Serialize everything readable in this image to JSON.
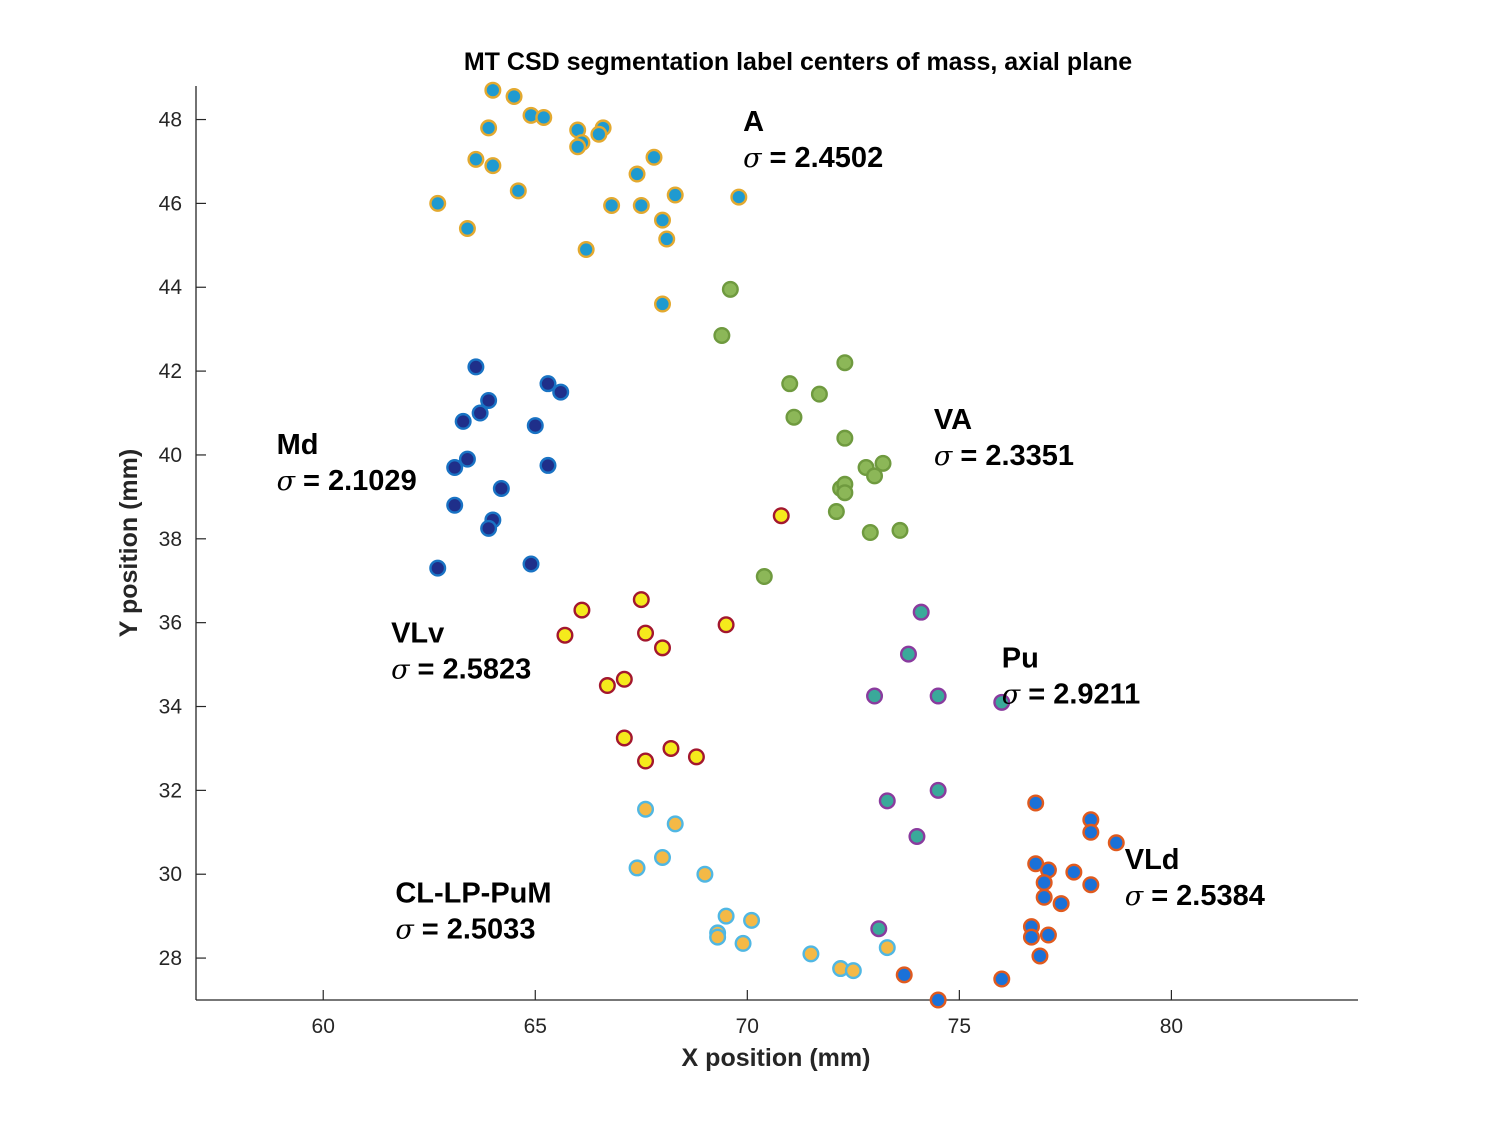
{
  "chart_data": {
    "type": "scatter",
    "title": "MT CSD segmentation label centers of mass, axial plane",
    "xlabel": "X position (mm)",
    "ylabel": "Y position (mm)",
    "xlim": [
      57,
      84.4
    ],
    "ylim": [
      27,
      48.8
    ],
    "xticks": [
      60,
      65,
      70,
      75,
      80
    ],
    "yticks": [
      28,
      30,
      32,
      34,
      36,
      38,
      40,
      42,
      44,
      46,
      48
    ],
    "grid": false,
    "series": [
      {
        "name": "A",
        "sigma_symbol": "σ",
        "sigma_text": "= 2.4502",
        "face_color": "#1f9ad0",
        "edge_color": "#e3a92f",
        "points": [
          [
            64.0,
            48.7
          ],
          [
            64.5,
            48.55
          ],
          [
            64.9,
            48.1
          ],
          [
            65.2,
            48.05
          ],
          [
            63.9,
            47.8
          ],
          [
            66.0,
            47.75
          ],
          [
            66.6,
            47.8
          ],
          [
            66.5,
            47.65
          ],
          [
            66.1,
            47.45
          ],
          [
            66.0,
            47.35
          ],
          [
            63.6,
            47.05
          ],
          [
            64.0,
            46.9
          ],
          [
            67.8,
            47.1
          ],
          [
            67.4,
            46.7
          ],
          [
            64.6,
            46.3
          ],
          [
            68.3,
            46.2
          ],
          [
            69.8,
            46.15
          ],
          [
            62.7,
            46.0
          ],
          [
            66.8,
            45.95
          ],
          [
            67.5,
            45.95
          ],
          [
            68.0,
            45.6
          ],
          [
            63.4,
            45.4
          ],
          [
            68.1,
            45.15
          ],
          [
            66.2,
            44.9
          ],
          [
            68.0,
            43.6
          ]
        ],
        "label_anchor": [
          69.9,
          47.2
        ]
      },
      {
        "name": "VA",
        "sigma_symbol": "σ",
        "sigma_text": "= 2.3351",
        "face_color": "#8cb758",
        "edge_color": "#6f9a3f",
        "points": [
          [
            69.6,
            43.95
          ],
          [
            69.4,
            42.85
          ],
          [
            72.3,
            42.2
          ],
          [
            71.0,
            41.7
          ],
          [
            71.7,
            41.45
          ],
          [
            71.1,
            40.9
          ],
          [
            72.3,
            40.4
          ],
          [
            72.8,
            39.7
          ],
          [
            73.2,
            39.8
          ],
          [
            73.0,
            39.5
          ],
          [
            72.2,
            39.2
          ],
          [
            72.3,
            39.3
          ],
          [
            72.3,
            39.1
          ],
          [
            72.1,
            38.65
          ],
          [
            72.9,
            38.15
          ],
          [
            73.6,
            38.2
          ],
          [
            70.4,
            37.1
          ]
        ],
        "label_anchor": [
          74.4,
          40.1
        ]
      },
      {
        "name": "Md",
        "sigma_symbol": "σ",
        "sigma_text": "= 2.1029",
        "face_color": "#1f2f8a",
        "edge_color": "#1973c4",
        "points": [
          [
            63.6,
            42.1
          ],
          [
            65.3,
            41.7
          ],
          [
            65.6,
            41.5
          ],
          [
            63.9,
            41.3
          ],
          [
            63.7,
            41.0
          ],
          [
            63.3,
            40.8
          ],
          [
            65.0,
            40.7
          ],
          [
            63.4,
            39.9
          ],
          [
            63.1,
            39.7
          ],
          [
            65.3,
            39.75
          ],
          [
            64.2,
            39.2
          ],
          [
            63.1,
            38.8
          ],
          [
            64.0,
            38.45
          ],
          [
            63.9,
            38.25
          ],
          [
            62.7,
            37.3
          ],
          [
            64.9,
            37.4
          ]
        ],
        "label_anchor": [
          58.9,
          39.5
        ]
      },
      {
        "name": "VLv",
        "sigma_symbol": "σ",
        "sigma_text": "= 2.5823",
        "face_color": "#f5ea1c",
        "edge_color": "#a3172e",
        "points": [
          [
            70.8,
            38.55
          ],
          [
            67.5,
            36.55
          ],
          [
            66.1,
            36.3
          ],
          [
            69.5,
            35.95
          ],
          [
            65.7,
            35.7
          ],
          [
            67.6,
            35.75
          ],
          [
            68.0,
            35.4
          ],
          [
            67.1,
            34.65
          ],
          [
            66.7,
            34.5
          ],
          [
            67.1,
            33.25
          ],
          [
            68.2,
            33.0
          ],
          [
            68.8,
            32.8
          ],
          [
            67.6,
            32.7
          ]
        ],
        "label_anchor": [
          61.6,
          35.0
        ]
      },
      {
        "name": "Pu",
        "sigma_symbol": "σ",
        "sigma_text": "= 2.9211",
        "face_color": "#3aa99a",
        "edge_color": "#8a3b9e",
        "points": [
          [
            74.1,
            36.25
          ],
          [
            73.8,
            35.25
          ],
          [
            73.0,
            34.25
          ],
          [
            74.5,
            34.25
          ],
          [
            76.0,
            34.1
          ],
          [
            74.5,
            32.0
          ],
          [
            73.3,
            31.75
          ],
          [
            74.0,
            30.9
          ],
          [
            73.1,
            28.7
          ]
        ],
        "label_anchor": [
          76.0,
          34.4
        ]
      },
      {
        "name": "CL-LP-PuM",
        "sigma_symbol": "σ",
        "sigma_text": "= 2.5033",
        "face_color": "#f4b946",
        "edge_color": "#50b7e3",
        "points": [
          [
            67.6,
            31.55
          ],
          [
            68.3,
            31.2
          ],
          [
            68.0,
            30.4
          ],
          [
            67.4,
            30.15
          ],
          [
            69.0,
            30.0
          ],
          [
            69.5,
            29.0
          ],
          [
            70.1,
            28.9
          ],
          [
            69.3,
            28.6
          ],
          [
            69.3,
            28.5
          ],
          [
            69.9,
            28.35
          ],
          [
            71.5,
            28.1
          ],
          [
            73.3,
            28.25
          ],
          [
            72.2,
            27.75
          ],
          [
            72.5,
            27.7
          ]
        ],
        "label_anchor": [
          61.7,
          28.8
        ]
      },
      {
        "name": "VLd",
        "sigma_symbol": "σ",
        "sigma_text": "= 2.5384",
        "face_color": "#1a71d8",
        "edge_color": "#e05a1e",
        "points": [
          [
            76.8,
            31.7
          ],
          [
            78.1,
            31.3
          ],
          [
            78.1,
            31.0
          ],
          [
            78.7,
            30.75
          ],
          [
            76.8,
            30.25
          ],
          [
            77.1,
            30.1
          ],
          [
            77.7,
            30.05
          ],
          [
            77.0,
            29.8
          ],
          [
            78.1,
            29.75
          ],
          [
            77.0,
            29.45
          ],
          [
            77.4,
            29.3
          ],
          [
            76.7,
            28.75
          ],
          [
            76.7,
            28.5
          ],
          [
            77.1,
            28.55
          ],
          [
            76.9,
            28.05
          ],
          [
            73.7,
            27.6
          ],
          [
            76.0,
            27.5
          ],
          [
            74.5,
            27.0
          ]
        ],
        "label_anchor": [
          78.9,
          29.6
        ]
      }
    ]
  }
}
